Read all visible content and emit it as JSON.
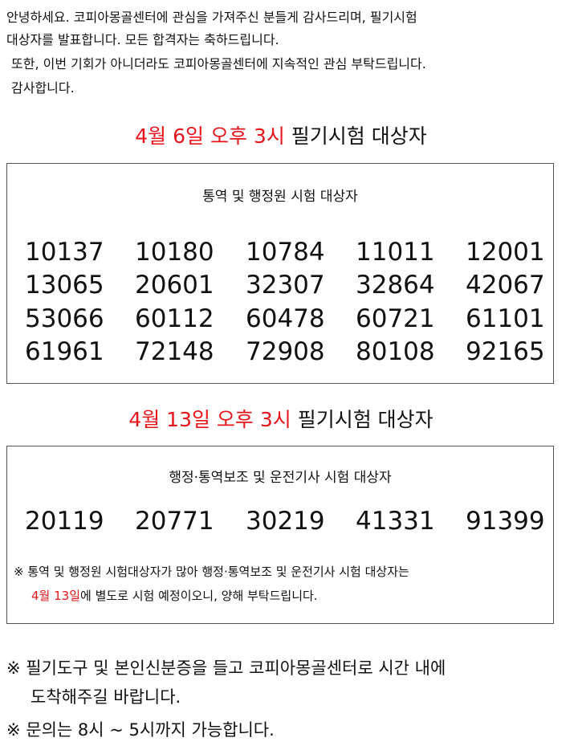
{
  "intro": {
    "lines": [
      "안녕하세요. 코피아몽골센터에 관심을 가져주신 분들게 감사드리며, 필기시험",
      "대상자를 발표합니다. 모든 합격자는 축하드립니다.",
      "또한, 이번 기회가 아니더라도 코피아몽골센터에 지속적인 관심 부탁드립니다.",
      "감사합니다."
    ]
  },
  "sections": [
    {
      "heading": {
        "time": "4월 6일 오후 3시",
        "text": "필기시험 대상자"
      },
      "subtitle": "통역 및 행정원 시험 대상자",
      "numbers": [
        "10137",
        "10180",
        "10784",
        "11011",
        "12001",
        "13065",
        "20601",
        "32307",
        "32864",
        "42067",
        "53066",
        "60112",
        "60478",
        "60721",
        "61101",
        "61961",
        "72148",
        "72908",
        "80108",
        "92165"
      ]
    },
    {
      "heading": {
        "time": "4월 13일 오후 3시",
        "text": "필기시험 대상자"
      },
      "subtitle": "행정·통역보조 및 운전기사 시험 대상자",
      "numbers": [
        "20119",
        "20771",
        "30219",
        "41331",
        "91399"
      ],
      "note": {
        "line1": "※ 통역 및 행정원 시험대상자가 많아 행정·통역보조 및 운전기사 시험 대상자는",
        "date": "4월 13일",
        "line2": "에 별도로 시험 예정이오니, 양해 부탁드립니다."
      }
    }
  ],
  "footer": {
    "lines": [
      "※ 필기도구 및 본인신분증을 들고 코피아몽골센터로 시간 내에",
      "도착해주길 바랍니다.",
      "※ 문의는 8시 ~ 5시까지 가능합니다."
    ]
  }
}
